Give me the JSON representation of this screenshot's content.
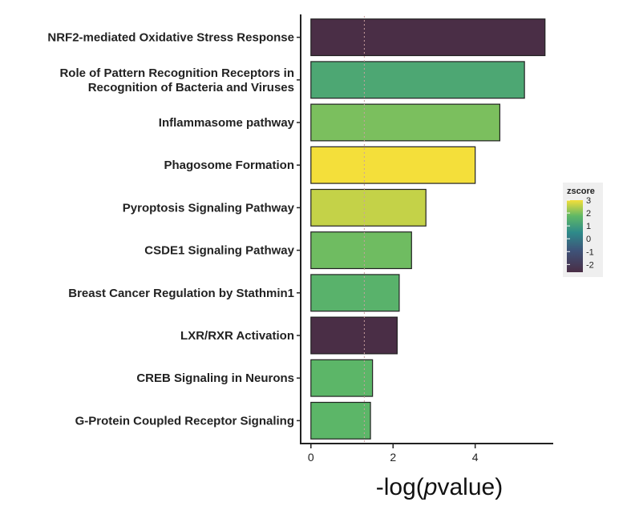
{
  "chart_data": {
    "type": "bar",
    "orientation": "horizontal",
    "categories": [
      "NRF2-mediated Oxidative Stress Response",
      "Role of Pattern Recognition Receptors in\nRecognition of Bacteria and Viruses",
      "Inflammasome pathway",
      "Phagosome Formation",
      "Pyroptosis Signaling Pathway",
      "CSDE1 Signaling Pathway",
      "Breast Cancer Regulation by Stathmin1",
      "LXR/RXR Activation",
      "CREB Signaling in Neurons",
      "G-Protein Coupled Receptor Signaling"
    ],
    "values": [
      5.7,
      5.2,
      4.6,
      4.0,
      2.8,
      2.45,
      2.15,
      2.1,
      1.5,
      1.45
    ],
    "zscore": [
      -2.6,
      1.3,
      2.0,
      3.0,
      2.6,
      1.9,
      1.6,
      -2.6,
      1.7,
      1.7
    ],
    "threshold": 1.3,
    "xlabel_prefix": "-log(",
    "xlabel_italic": "p",
    "xlabel_suffix": "value)",
    "xlim": [
      -0.25,
      5.9
    ],
    "xticks": [
      0,
      2,
      4
    ],
    "legend": {
      "title": "zscore",
      "ticks": [
        3,
        2,
        1,
        0,
        -1,
        -2
      ],
      "range": [
        -2.6,
        3.0
      ],
      "position": "right"
    }
  }
}
